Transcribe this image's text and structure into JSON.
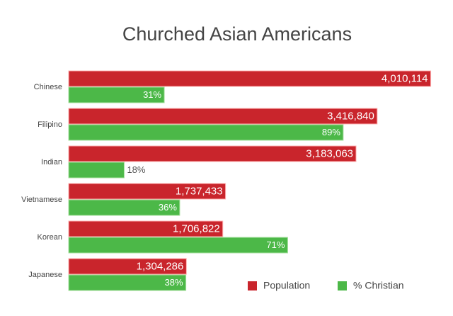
{
  "chart_data": {
    "type": "bar",
    "orientation": "horizontal",
    "title": "Churched Asian Americans",
    "categories": [
      "Chinese",
      "Filipino",
      "Indian",
      "Vietnamese",
      "Korean",
      "Japanese"
    ],
    "series": [
      {
        "name": "Population",
        "color": "#c9252c",
        "values": [
          4010114,
          3416840,
          3183063,
          1737433,
          1706822,
          1304286
        ],
        "value_labels": [
          "4,010,114",
          "3,416,840",
          "3,183,063",
          "1,737,433",
          "1,706,822",
          "1,304,286"
        ]
      },
      {
        "name": "% Christian",
        "color": "#4cb848",
        "axis": "x2",
        "values": [
          31,
          89,
          18,
          36,
          71,
          38
        ],
        "value_labels": [
          "31%",
          "89%",
          "18%",
          "36%",
          "71%",
          "38%"
        ]
      }
    ],
    "xlim": [
      0,
      4100000
    ],
    "x2lim": [
      0,
      120
    ],
    "grid": false
  }
}
